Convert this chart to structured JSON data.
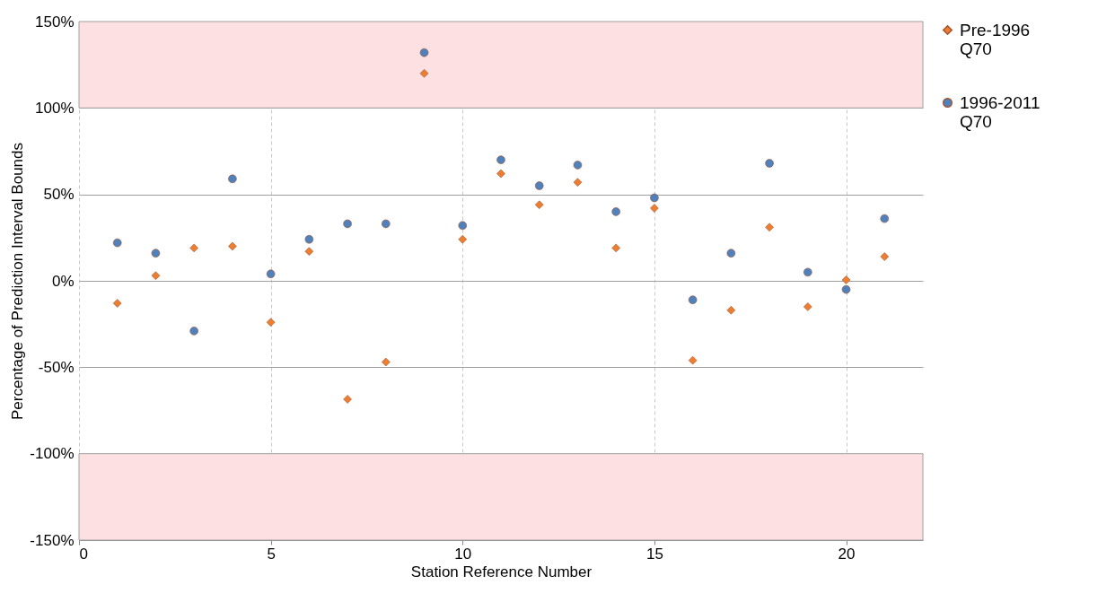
{
  "chart_data": {
    "type": "scatter",
    "xlabel": "Station Reference Number",
    "ylabel": "Percentage of Prediction Interval Bounds",
    "x": [
      1,
      2,
      3,
      4,
      5,
      6,
      7,
      8,
      9,
      10,
      11,
      12,
      13,
      14,
      15,
      16,
      17,
      18,
      19,
      20,
      21
    ],
    "series": [
      {
        "name": "Pre-1996 Q70",
        "color": "#ed7d31",
        "marker": "diamond",
        "values": [
          -13,
          3,
          19,
          20,
          -24,
          17,
          -68.5,
          -47,
          120,
          24,
          62,
          44,
          57,
          19,
          42,
          -46,
          -17,
          31,
          -15,
          0.5,
          14
        ]
      },
      {
        "name": "1996-2011 Q70",
        "color": "#4f81bd",
        "marker": "circle",
        "values": [
          22,
          16,
          -29,
          59,
          4,
          24,
          33,
          33,
          132,
          32,
          70,
          55,
          67,
          40,
          48,
          -11,
          16,
          68,
          5,
          -5,
          36
        ]
      }
    ],
    "xlim": [
      0,
      22
    ],
    "xticks": [
      0,
      5,
      10,
      15,
      20
    ],
    "ylim": [
      -150,
      150
    ],
    "yticks": [
      {
        "value": -150,
        "label": "-150%"
      },
      {
        "value": -100,
        "label": "-100%"
      },
      {
        "value": -50,
        "label": "-50%"
      },
      {
        "value": 0,
        "label": "0%"
      },
      {
        "value": 50,
        "label": "50%"
      },
      {
        "value": 100,
        "label": "100%"
      },
      {
        "value": 150,
        "label": "150%"
      }
    ],
    "bands": [
      {
        "axis": "y",
        "from": 100,
        "to": 150,
        "color": "#fde0e1"
      },
      {
        "axis": "y",
        "from": -150,
        "to": -100,
        "color": "#fde0e1"
      }
    ],
    "grid": true,
    "legend": "right"
  }
}
